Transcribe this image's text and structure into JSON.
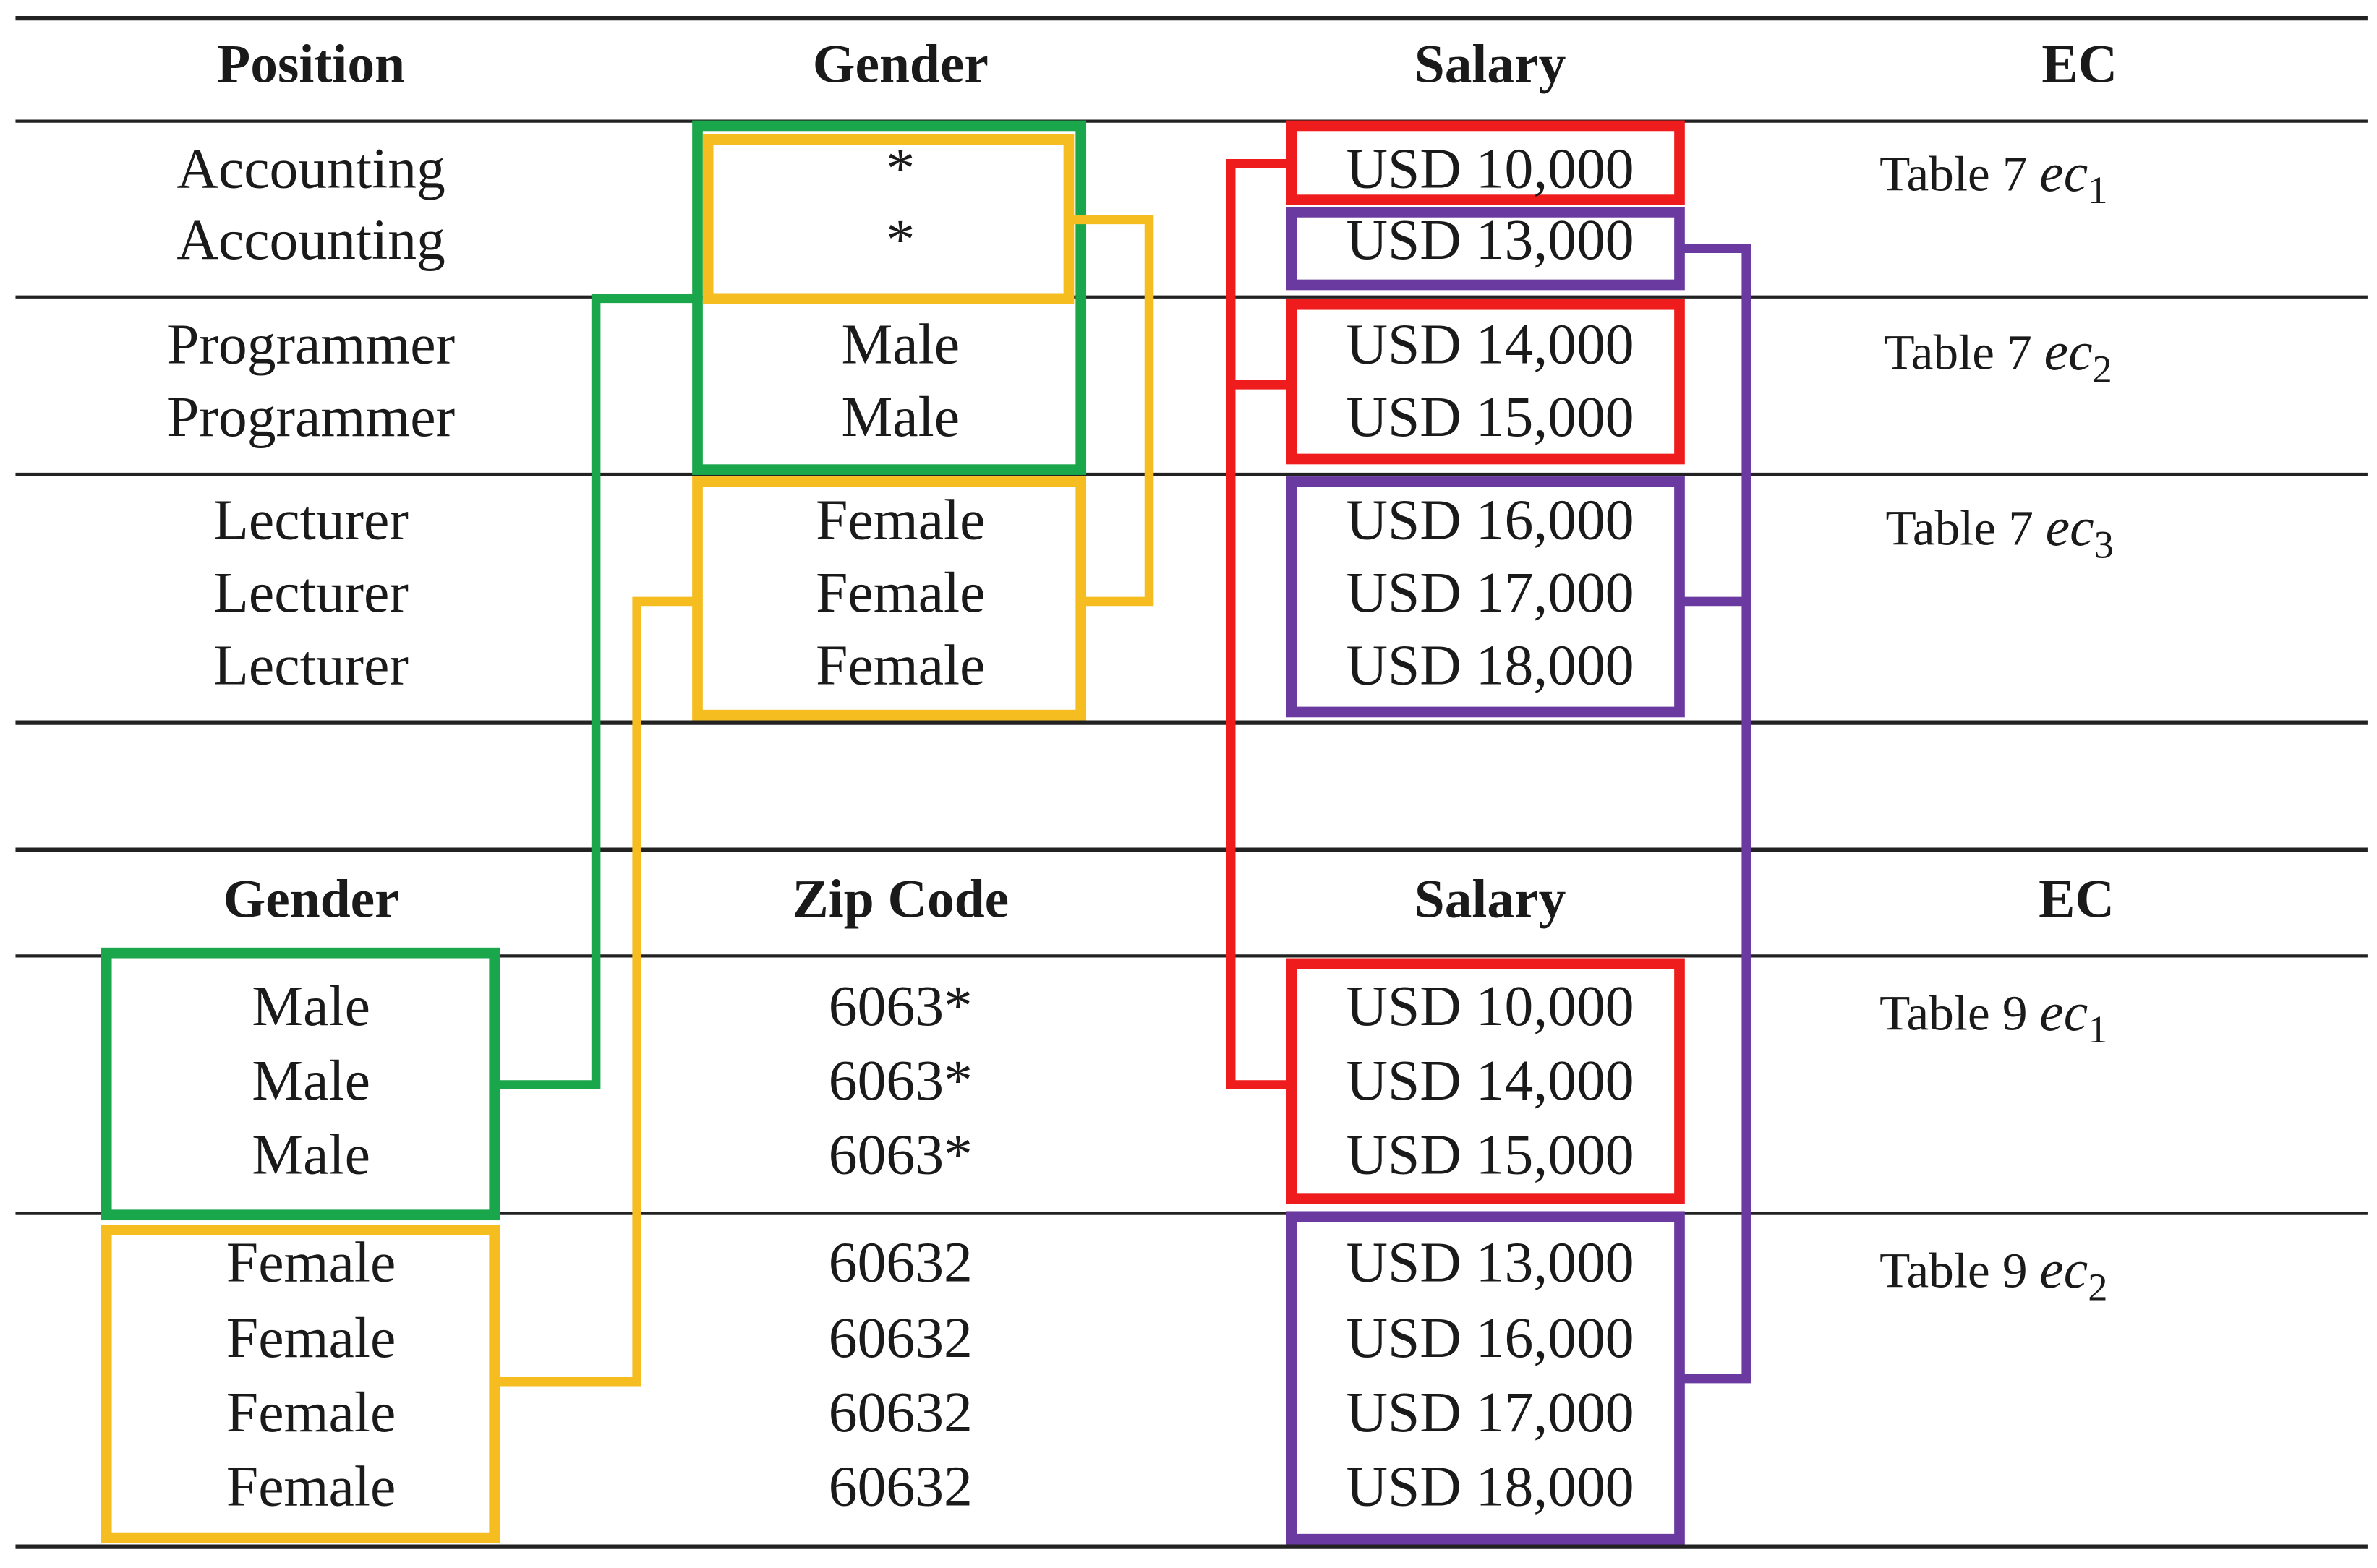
{
  "table_1": {
    "header": [
      "Position",
      "Gender",
      "Salary",
      "EC"
    ],
    "rows": [
      [
        "Accounting",
        "*",
        "USD 10,000"
      ],
      [
        "Accounting",
        "*",
        "USD 13,000"
      ],
      [
        "Programmer",
        "Male",
        "USD 14,000"
      ],
      [
        "Programmer",
        "Male",
        "USD 15,000"
      ],
      [
        "Lecturer",
        "Female",
        "USD 16,000"
      ],
      [
        "Lecturer",
        "Female",
        "USD 17,000"
      ],
      [
        "Lecturer",
        "Female",
        "USD 18,000"
      ]
    ],
    "ec": [
      {
        "table": "Table 7",
        "var": "ec",
        "sub": "1"
      },
      {
        "table": "Table 7",
        "var": "ec",
        "sub": "2"
      },
      {
        "table": "Table 7",
        "var": "ec",
        "sub": "3"
      }
    ]
  },
  "table_2": {
    "header": [
      "Gender",
      "Zip Code",
      "Salary",
      "EC"
    ],
    "rows": [
      [
        "Male",
        "6063*",
        "USD 10,000"
      ],
      [
        "Male",
        "6063*",
        "USD 14,000"
      ],
      [
        "Male",
        "6063*",
        "USD 15,000"
      ],
      [
        "Female",
        "60632",
        "USD 13,000"
      ],
      [
        "Female",
        "60632",
        "USD 16,000"
      ],
      [
        "Female",
        "60632",
        "USD 17,000"
      ],
      [
        "Female",
        "60632",
        "USD 18,000"
      ]
    ],
    "ec": [
      {
        "table": "Table 9",
        "var": "ec",
        "sub": "1"
      },
      {
        "table": "Table 9",
        "var": "ec",
        "sub": "2"
      }
    ]
  }
}
